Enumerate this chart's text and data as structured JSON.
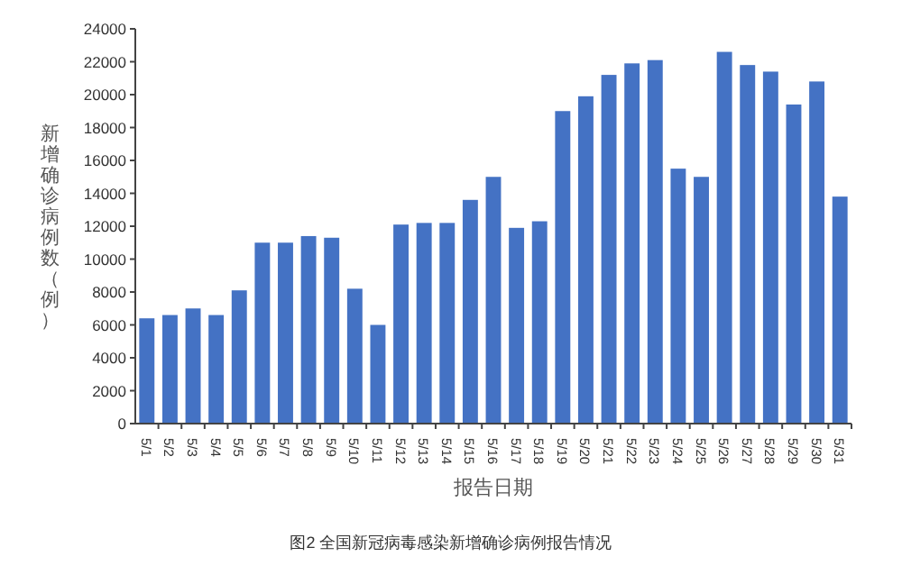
{
  "chart_data": {
    "type": "bar",
    "xlabel": "报告日期",
    "ylabel": "新增确诊病例数（例）",
    "annotations": [
      "图2 全国新冠病毒感染新增确诊病例报告情况"
    ],
    "categories": [
      "5/1",
      "5/2",
      "5/3",
      "5/4",
      "5/5",
      "5/6",
      "5/7",
      "5/8",
      "5/9",
      "5/10",
      "5/11",
      "5/12",
      "5/13",
      "5/14",
      "5/15",
      "5/16",
      "5/17",
      "5/18",
      "5/19",
      "5/20",
      "5/21",
      "5/22",
      "5/23",
      "5/24",
      "5/25",
      "5/26",
      "5/27",
      "5/28",
      "5/29",
      "5/30",
      "5/31"
    ],
    "values": [
      6400,
      6600,
      7000,
      6600,
      8100,
      11000,
      11000,
      11400,
      11300,
      8200,
      6000,
      12100,
      12200,
      12200,
      13600,
      15000,
      11900,
      12300,
      19000,
      19900,
      21200,
      21900,
      22100,
      15500,
      15000,
      22600,
      21800,
      21400,
      19400,
      20800,
      13800
    ],
    "color": "#4472c4",
    "ylim": [
      0,
      24000
    ],
    "yticks": [
      0,
      2000,
      4000,
      6000,
      8000,
      10000,
      12000,
      14000,
      16000,
      18000,
      20000,
      22000,
      24000
    ],
    "grid": false
  }
}
